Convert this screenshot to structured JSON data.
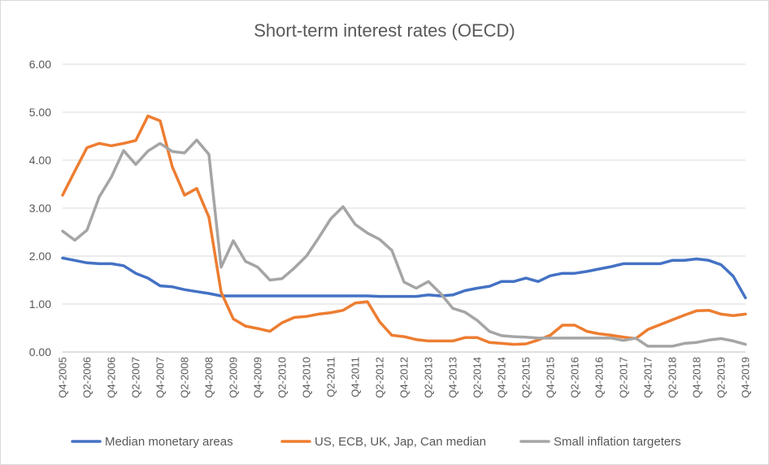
{
  "chart_data": {
    "type": "line",
    "title": "Short-term interest rates  (OECD)",
    "xlabel": "",
    "ylabel": "",
    "ylim": [
      0,
      6
    ],
    "y_ticks": [
      "0.00",
      "1.00",
      "2.00",
      "3.00",
      "4.00",
      "5.00",
      "6.00"
    ],
    "grid": true,
    "legend_position": "bottom",
    "x_tick_labels": [
      "Q4-2005",
      "Q2-2006",
      "Q4-2006",
      "Q2-2007",
      "Q4-2007",
      "Q2-2008",
      "Q4-2008",
      "Q2-2009",
      "Q4-2009",
      "Q2-2010",
      "Q4-2010",
      "Q2-2011",
      "Q4-2011",
      "Q2-2012",
      "Q4-2012",
      "Q2-2013",
      "Q4-2013",
      "Q2-2014",
      "Q4-2014",
      "Q2-2015",
      "Q4-2015",
      "Q2-2016",
      "Q4-2016",
      "Q2-2017",
      "Q4-2017",
      "Q2-2018",
      "Q4-2018",
      "Q2-2019",
      "Q4-2019"
    ],
    "x": [
      "Q4-2005",
      "Q1-2006",
      "Q2-2006",
      "Q3-2006",
      "Q4-2006",
      "Q1-2007",
      "Q2-2007",
      "Q3-2007",
      "Q4-2007",
      "Q1-2008",
      "Q2-2008",
      "Q3-2008",
      "Q4-2008",
      "Q1-2009",
      "Q2-2009",
      "Q3-2009",
      "Q4-2009",
      "Q1-2010",
      "Q2-2010",
      "Q3-2010",
      "Q4-2010",
      "Q1-2011",
      "Q2-2011",
      "Q3-2011",
      "Q4-2011",
      "Q1-2012",
      "Q2-2012",
      "Q3-2012",
      "Q4-2012",
      "Q1-2013",
      "Q2-2013",
      "Q3-2013",
      "Q4-2013",
      "Q1-2014",
      "Q2-2014",
      "Q3-2014",
      "Q4-2014",
      "Q1-2015",
      "Q2-2015",
      "Q3-2015",
      "Q4-2015",
      "Q1-2016",
      "Q2-2016",
      "Q3-2016",
      "Q4-2016",
      "Q1-2017",
      "Q2-2017",
      "Q3-2017",
      "Q4-2017",
      "Q1-2018",
      "Q2-2018",
      "Q3-2018",
      "Q4-2018",
      "Q1-2019",
      "Q2-2019",
      "Q3-2019",
      "Q4-2019"
    ],
    "series": [
      {
        "name": "Median monetary areas",
        "color": "#4472c4",
        "values": [
          1.96,
          1.91,
          1.86,
          1.84,
          1.84,
          1.8,
          1.64,
          1.54,
          1.38,
          1.36,
          1.3,
          1.26,
          1.22,
          1.17,
          1.17,
          1.17,
          1.17,
          1.17,
          1.17,
          1.17,
          1.17,
          1.17,
          1.17,
          1.17,
          1.17,
          1.17,
          1.16,
          1.16,
          1.16,
          1.16,
          1.19,
          1.17,
          1.19,
          1.28,
          1.33,
          1.37,
          1.47,
          1.47,
          1.54,
          1.47,
          1.59,
          1.64,
          1.64,
          1.68,
          1.73,
          1.78,
          1.84,
          1.84,
          1.84,
          1.84,
          1.91,
          1.91,
          1.94,
          1.91,
          1.82,
          1.58,
          1.13
        ]
      },
      {
        "name": "US, ECB, UK, Jap, Can median",
        "color": "#ed7d31",
        "values": [
          3.27,
          3.77,
          4.26,
          4.35,
          4.3,
          4.35,
          4.41,
          4.92,
          4.82,
          3.86,
          3.27,
          3.41,
          2.81,
          1.25,
          0.69,
          0.54,
          0.49,
          0.43,
          0.61,
          0.72,
          0.74,
          0.79,
          0.82,
          0.87,
          1.02,
          1.05,
          0.63,
          0.35,
          0.32,
          0.26,
          0.23,
          0.23,
          0.23,
          0.3,
          0.3,
          0.2,
          0.18,
          0.16,
          0.17,
          0.25,
          0.35,
          0.56,
          0.56,
          0.43,
          0.38,
          0.35,
          0.31,
          0.28,
          0.47,
          0.57,
          0.67,
          0.77,
          0.86,
          0.87,
          0.79,
          0.76,
          0.79
        ]
      },
      {
        "name": "Small inflation targeters",
        "color": "#a5a5a5",
        "values": [
          2.52,
          2.33,
          2.54,
          3.23,
          3.65,
          4.2,
          3.91,
          4.19,
          4.35,
          4.18,
          4.15,
          4.42,
          4.12,
          1.77,
          2.32,
          1.89,
          1.77,
          1.5,
          1.53,
          1.75,
          2.0,
          2.38,
          2.78,
          3.03,
          2.66,
          2.48,
          2.35,
          2.12,
          1.46,
          1.33,
          1.47,
          1.22,
          0.91,
          0.83,
          0.66,
          0.43,
          0.34,
          0.32,
          0.31,
          0.29,
          0.29,
          0.29,
          0.29,
          0.29,
          0.29,
          0.29,
          0.24,
          0.29,
          0.12,
          0.12,
          0.12,
          0.18,
          0.2,
          0.25,
          0.28,
          0.23,
          0.16
        ]
      }
    ]
  }
}
